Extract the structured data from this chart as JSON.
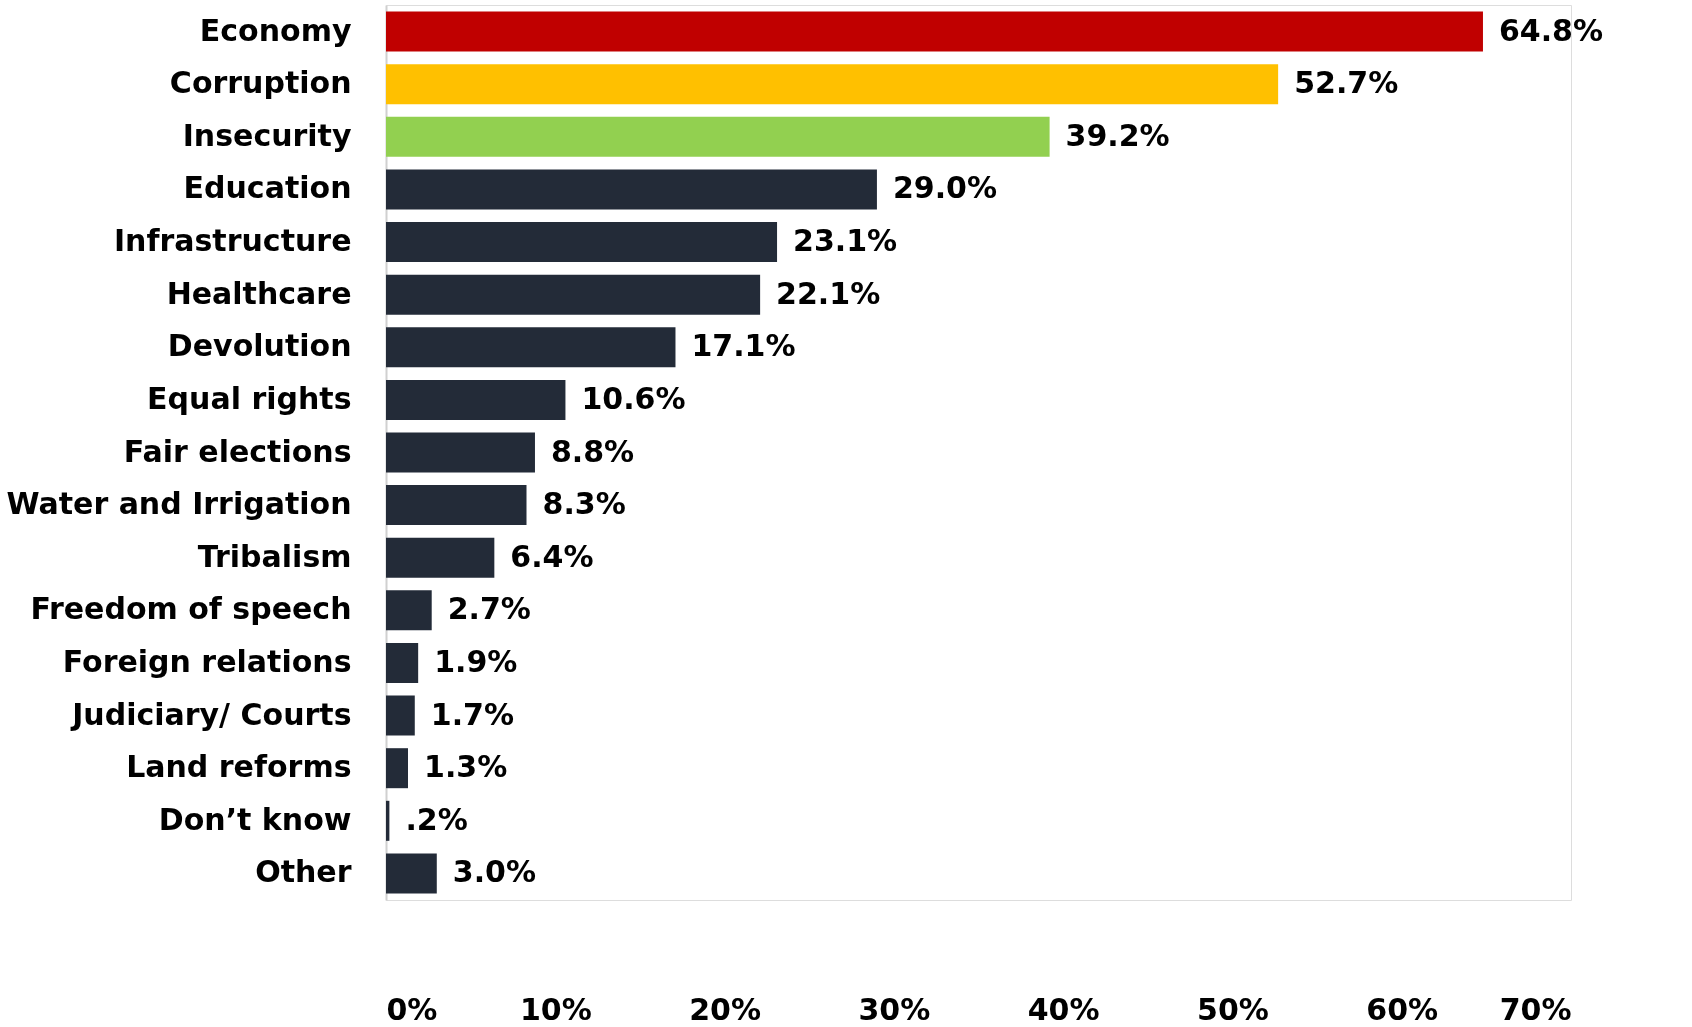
{
  "chart_data": {
    "type": "bar",
    "orientation": "horizontal",
    "categories": [
      "Economy",
      "Corruption",
      "Insecurity",
      "Education",
      "Infrastructure",
      "Healthcare",
      "Devolution",
      "Equal rights",
      "Fair elections",
      "Water and Irrigation",
      "Tribalism",
      "Freedom of speech",
      "Foreign relations",
      "Judiciary/ Courts",
      "Land reforms",
      "Don’t know",
      "Other"
    ],
    "values": [
      64.8,
      52.7,
      39.2,
      29.0,
      23.1,
      22.1,
      17.1,
      10.6,
      8.8,
      8.3,
      6.4,
      2.7,
      1.9,
      1.7,
      1.3,
      0.2,
      3.0
    ],
    "value_labels": [
      "64.8%",
      "52.7%",
      "39.2%",
      "29.0%",
      "23.1%",
      "22.1%",
      "17.1%",
      "10.6%",
      "8.8%",
      "8.3%",
      "6.4%",
      "2.7%",
      "1.9%",
      "1.7%",
      "1.3%",
      ".2%",
      "3.0%"
    ],
    "colors": [
      "#c00000",
      "#ffc000",
      "#92d050",
      "#232b38",
      "#232b38",
      "#232b38",
      "#232b38",
      "#232b38",
      "#232b38",
      "#232b38",
      "#232b38",
      "#232b38",
      "#232b38",
      "#232b38",
      "#232b38",
      "#232b38",
      "#232b38"
    ],
    "xlim": [
      0,
      70
    ],
    "xticks": [
      {
        "value": 0,
        "label": "0%"
      },
      {
        "value": 10,
        "label": "10%"
      },
      {
        "value": 20,
        "label": "20%"
      },
      {
        "value": 30,
        "label": "30%"
      },
      {
        "value": 40,
        "label": "40%"
      },
      {
        "value": 50,
        "label": "50%"
      },
      {
        "value": 60,
        "label": "60%"
      },
      {
        "value": 70,
        "label": "70%"
      }
    ],
    "grid": false
  }
}
